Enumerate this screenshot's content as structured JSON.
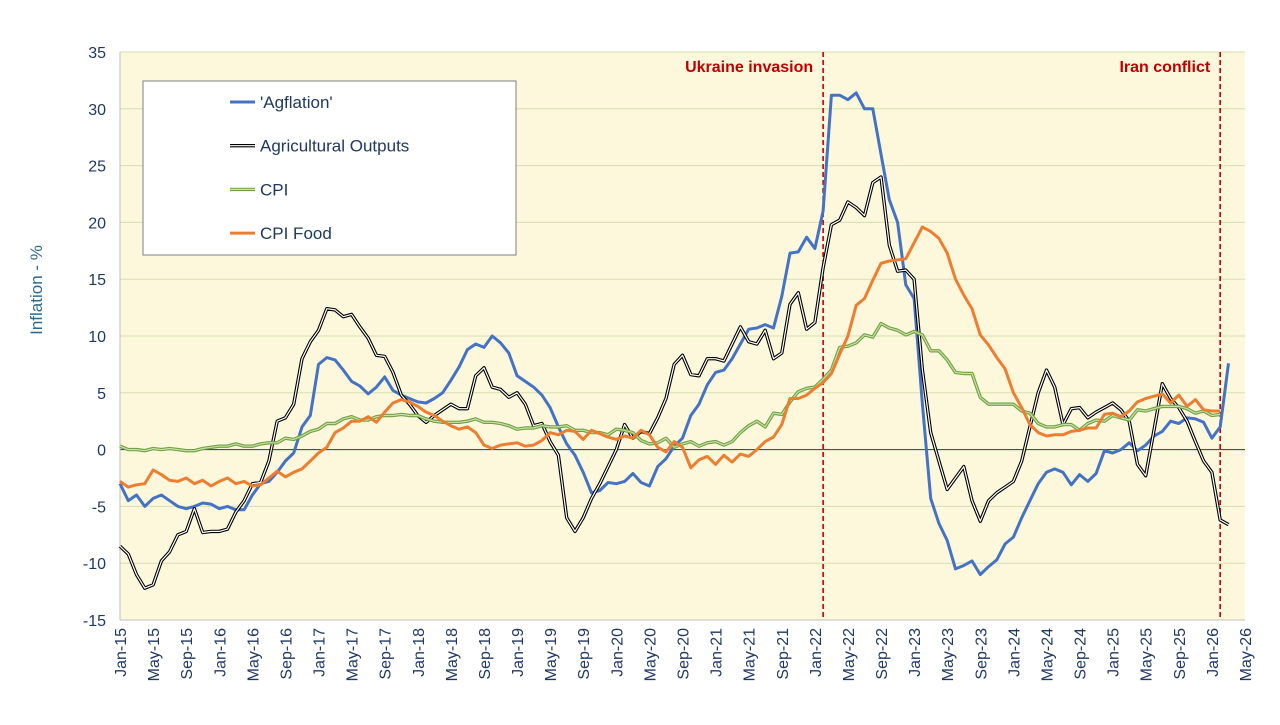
{
  "chart_data": {
    "type": "line",
    "y_label": "Inflation - %",
    "categories": [
      "Jan-15",
      null,
      null,
      null,
      "May-15",
      null,
      null,
      null,
      "Sep-15",
      null,
      null,
      null,
      "Jan-16",
      null,
      null,
      null,
      "May-16",
      null,
      null,
      null,
      "Sep-16",
      null,
      null,
      null,
      "Jan-17",
      null,
      null,
      null,
      "May-17",
      null,
      null,
      null,
      "Sep-17",
      null,
      null,
      null,
      "Jan-18",
      null,
      null,
      null,
      "May-18",
      null,
      null,
      null,
      "Sep-18",
      null,
      null,
      null,
      "Jan-19",
      null,
      null,
      null,
      "May-19",
      null,
      null,
      null,
      "Sep-19",
      null,
      null,
      null,
      "Jan-20",
      null,
      null,
      null,
      "May-20",
      null,
      null,
      null,
      "Sep-20",
      null,
      null,
      null,
      "Jan-21",
      null,
      null,
      null,
      "May-21",
      null,
      null,
      null,
      "Sep-21",
      null,
      null,
      null,
      "Jan-22",
      null,
      null,
      null,
      "May-22",
      null,
      null,
      null,
      "Sep-22",
      null,
      null,
      null,
      "Jan-23",
      null,
      null,
      null,
      "May-23",
      null,
      null,
      null,
      "Sep-23",
      null,
      null,
      null,
      "Jan-24",
      null,
      null,
      null,
      "May-24",
      null,
      null,
      null,
      "Sep-24",
      null,
      null,
      null,
      "Jan-25",
      null,
      null,
      null,
      "May-25",
      null,
      null,
      null,
      "Sep-25",
      null,
      null,
      null,
      "Jan-26",
      null,
      null,
      null,
      "May-26"
    ],
    "ylim": [
      -15,
      35
    ],
    "yticks": [
      -15,
      -10,
      -5,
      0,
      5,
      10,
      15,
      20,
      25,
      30,
      35
    ],
    "grid": true,
    "legend": "upper left",
    "annotations": [
      {
        "text": "Ukraine invasion",
        "at": 85,
        "color": "#c00000"
      },
      {
        "text": "Iran conflict",
        "at": 133,
        "color": "#c00000"
      }
    ],
    "series": [
      {
        "name": "'Agflation'",
        "color": "#4472c4",
        "values": [
          -3,
          -4.5,
          -4,
          -5,
          -4.3,
          -4,
          -4.5,
          -5,
          -5.2,
          -5,
          -4.7,
          -4.8,
          -5.2,
          -5,
          -5.3,
          -5.3,
          -4,
          -3,
          -2.8,
          -2,
          -1,
          -0.3,
          2,
          3,
          7.5,
          8.1,
          7.9,
          7,
          6,
          5.6,
          4.9,
          5.5,
          6.4,
          5.2,
          4.8,
          4.5,
          4.2,
          4.1,
          4.5,
          5,
          6.1,
          7.3,
          8.8,
          9.3,
          9,
          10,
          9.4,
          8.5,
          6.5,
          6,
          5.5,
          4.8,
          3.7,
          2,
          0.5,
          -0.5,
          -2,
          -3.8,
          -3.6,
          -2.9,
          -3,
          -2.8,
          -2.1,
          -2.9,
          -3.2,
          -1.5,
          -0.8,
          0.3,
          1,
          3,
          4,
          5.7,
          6.8,
          7,
          8,
          9.3,
          10.6,
          10.7,
          11,
          10.7,
          13.5,
          17.3,
          17.4,
          18.7,
          17.7,
          21,
          31.2,
          31.2,
          30.8,
          31.4,
          30,
          30,
          26,
          22,
          20,
          14.5,
          13.3,
          4,
          -4.3,
          -6.5,
          -8,
          -10.5,
          -10.2,
          -9.8,
          -11,
          -10.3,
          -9.7,
          -8.3,
          -7.7,
          -6,
          -4.5,
          -3,
          -2,
          -1.7,
          -2,
          -3.1,
          -2.2,
          -2.8,
          -2.1,
          -0.1,
          -0.3,
          0,
          0.6,
          -0.1,
          0.4,
          1.2,
          1.6,
          2.5,
          2.3,
          2.8,
          2.7,
          2.4,
          1,
          2,
          7.6,
          null,
          null
        ]
      },
      {
        "name": "Agricultural Outputs",
        "color": "#000000",
        "inner_color": "#ffffff",
        "values": [
          -8.5,
          -9.2,
          -11,
          -12.2,
          -11.9,
          -9.8,
          -9,
          -7.5,
          -7.2,
          -5.2,
          -7.3,
          -7.2,
          -7.2,
          -7,
          -5.5,
          -4.5,
          -3,
          -2.9,
          -1,
          2.5,
          2.8,
          4,
          8,
          9.5,
          10.5,
          12.4,
          12.3,
          11.7,
          11.9,
          10.8,
          9.8,
          8.3,
          8.2,
          6.8,
          4.8,
          4,
          3,
          2.4,
          3,
          3.5,
          4,
          3.6,
          3.6,
          6.5,
          7.2,
          5.5,
          5.3,
          4.6,
          5,
          4,
          2.1,
          2.3,
          0.7,
          -0.5,
          -6,
          -7.2,
          -6,
          -4.3,
          -3,
          -1.5,
          0,
          2.2,
          1,
          1.6,
          1.4,
          2.8,
          4.5,
          7.5,
          8.3,
          6.6,
          6.5,
          8,
          8,
          7.8,
          9.3,
          10.8,
          9.5,
          9.3,
          10.5,
          8,
          8.5,
          12.8,
          13.8,
          10.6,
          11.2,
          16,
          19.8,
          20.2,
          21.8,
          21.3,
          20.6,
          23.5,
          24,
          18,
          15.7,
          15.8,
          15,
          7,
          1.5,
          -1,
          -3.5,
          -2.5,
          -1.5,
          -4.5,
          -6.3,
          -4.5,
          -3.8,
          -3.3,
          -2.8,
          -1,
          2,
          5,
          7,
          5.5,
          2.2,
          3.6,
          3.7,
          2.8,
          3.3,
          3.7,
          4.1,
          3.5,
          2.5,
          -1.3,
          -2.3,
          1.7,
          5.8,
          4.5,
          3.7,
          2.5,
          0.7,
          -1,
          -2,
          -6.2,
          -6.6,
          null,
          null
        ]
      },
      {
        "name": "CPI",
        "color": "#70a040",
        "inner_color": "#c6e0a8",
        "values": [
          0.3,
          0,
          0,
          -0.1,
          0.1,
          0,
          0.1,
          0,
          -0.1,
          -0.1,
          0.1,
          0.2,
          0.3,
          0.3,
          0.5,
          0.3,
          0.3,
          0.5,
          0.6,
          0.6,
          1,
          0.9,
          1.2,
          1.6,
          1.8,
          2.3,
          2.3,
          2.7,
          2.9,
          2.6,
          2.6,
          2.9,
          3,
          3,
          3.1,
          3,
          3,
          2.7,
          2.5,
          2.4,
          2.4,
          2.4,
          2.5,
          2.7,
          2.4,
          2.4,
          2.3,
          2.1,
          1.8,
          1.9,
          1.9,
          2.1,
          2,
          2,
          2.1,
          1.7,
          1.7,
          1.5,
          1.5,
          1.3,
          1.8,
          1.7,
          1.5,
          0.8,
          0.5,
          0.6,
          1,
          0.2,
          0.5,
          0.7,
          0.3,
          0.6,
          0.7,
          0.4,
          0.7,
          1.5,
          2.1,
          2.5,
          2,
          3.2,
          3.1,
          4.2,
          5.1,
          5.4,
          5.5,
          6.2,
          7,
          9,
          9.1,
          9.4,
          10.1,
          9.9,
          11.1,
          10.7,
          10.5,
          10.1,
          10.4,
          10.1,
          8.7,
          8.7,
          7.9,
          6.8,
          6.7,
          6.7,
          4.6,
          4,
          4,
          4,
          4,
          3.4,
          3.2,
          2.3,
          2,
          2,
          2.2,
          2.2,
          1.7,
          2.3,
          2.6,
          2.5,
          3,
          2.8,
          2.6,
          3.5,
          3.4,
          3.6,
          3.8,
          3.8,
          3.8,
          3.6,
          3.2,
          3.4,
          3,
          3.1,
          null,
          null,
          null
        ]
      },
      {
        "name": "CPI Food",
        "color": "#ed7d31",
        "values": [
          -2.8,
          -3.3,
          -3.1,
          -3,
          -1.8,
          -2.2,
          -2.7,
          -2.8,
          -2.5,
          -3,
          -2.7,
          -3.2,
          -2.8,
          -2.5,
          -3,
          -2.8,
          -3.2,
          -3.1,
          -2.5,
          -1.9,
          -2.4,
          -2,
          -1.7,
          -1,
          -0.3,
          0.2,
          1.5,
          1.9,
          2.5,
          2.5,
          2.9,
          2.4,
          3.3,
          4.1,
          4.4,
          4.2,
          3.8,
          3.3,
          3,
          2.5,
          2.1,
          1.8,
          2,
          1.5,
          0.4,
          0.1,
          0.4,
          0.5,
          0.6,
          0.3,
          0.4,
          0.8,
          1.5,
          1.3,
          1.7,
          1.6,
          0.9,
          1.7,
          1.4,
          1.1,
          0.9,
          1.2,
          1,
          1.7,
          1.3,
          0.2,
          -0.2,
          0.7,
          0.2,
          -1.6,
          -0.9,
          -0.6,
          -1.3,
          -0.5,
          -1.1,
          -0.4,
          -0.6,
          0,
          0.7,
          1.1,
          2.2,
          4.5,
          4.5,
          4.8,
          5.4,
          5.9,
          6.7,
          8.4,
          10,
          12.7,
          13.3,
          14.9,
          16.4,
          16.6,
          16.7,
          16.8,
          18.2,
          19.6,
          19.2,
          18.6,
          17.3,
          15,
          13.6,
          12.4,
          10.1,
          9.2,
          8.1,
          7.1,
          5,
          3.7,
          2.2,
          1.5,
          1.2,
          1.3,
          1.3,
          1.6,
          1.7,
          1.9,
          1.9,
          3.1,
          3.2,
          2.9,
          3.4,
          4.2,
          4.5,
          4.7,
          4.9,
          4.1,
          4.8,
          3.8,
          4.4,
          3.5,
          3.4,
          3.4,
          null,
          null,
          null
        ]
      }
    ]
  }
}
